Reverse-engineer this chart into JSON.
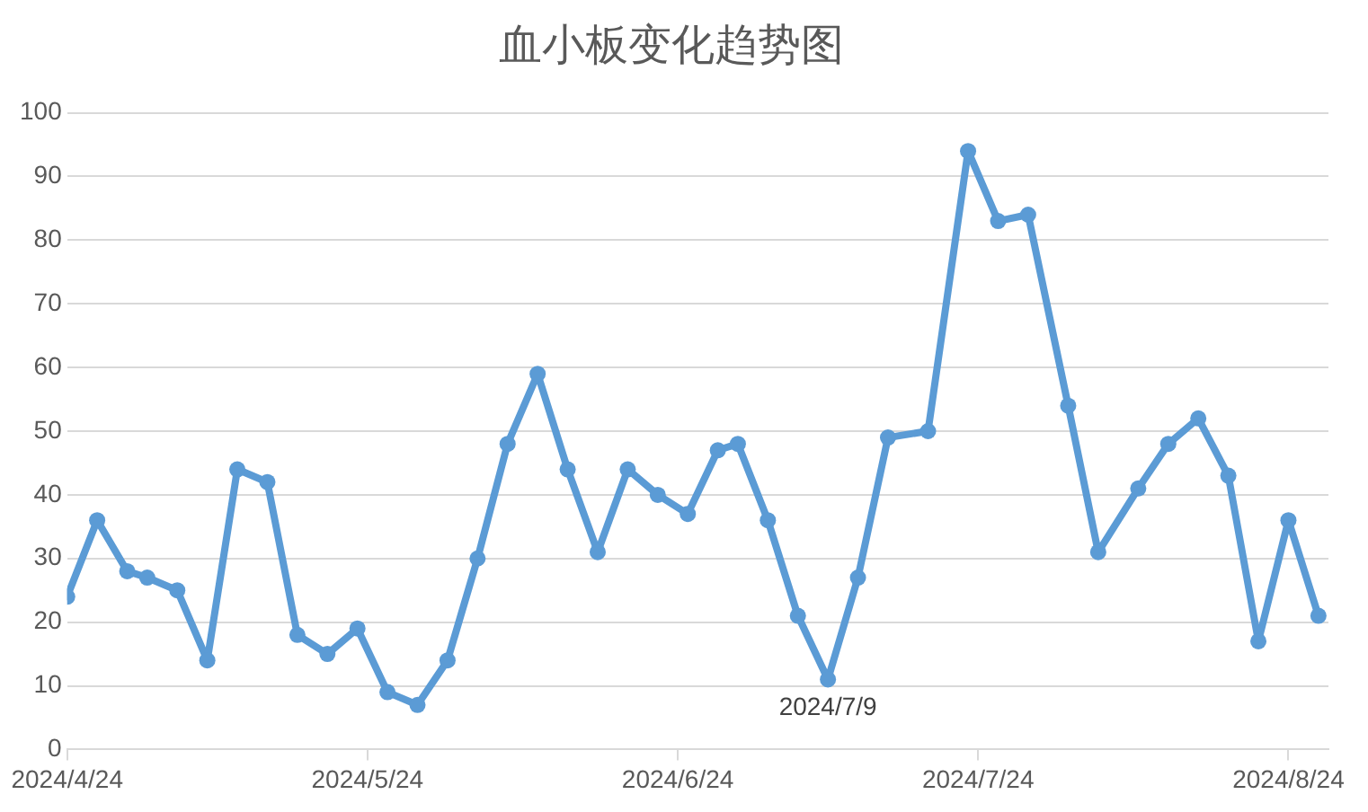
{
  "chart_data": {
    "type": "line",
    "title": "血小板变化趋势图",
    "x": [
      "2024-04-24",
      "2024-04-27",
      "2024-04-30",
      "2024-05-02",
      "2024-05-05",
      "2024-05-08",
      "2024-05-11",
      "2024-05-14",
      "2024-05-17",
      "2024-05-20",
      "2024-05-23",
      "2024-05-26",
      "2024-05-29",
      "2024-06-01",
      "2024-06-04",
      "2024-06-07",
      "2024-06-10",
      "2024-06-13",
      "2024-06-16",
      "2024-06-19",
      "2024-06-22",
      "2024-06-25",
      "2024-06-28",
      "2024-06-30",
      "2024-07-03",
      "2024-07-06",
      "2024-07-09",
      "2024-07-12",
      "2024-07-15",
      "2024-07-19",
      "2024-07-23",
      "2024-07-26",
      "2024-07-29",
      "2024-08-02",
      "2024-08-05",
      "2024-08-09",
      "2024-08-12",
      "2024-08-15",
      "2024-08-18",
      "2024-08-21",
      "2024-08-24",
      "2024-08-27"
    ],
    "series": [
      {
        "color": "#5b9bd5",
        "values": [
          24,
          36,
          28,
          27,
          25,
          14,
          44,
          42,
          18,
          15,
          19,
          9,
          7,
          14,
          30,
          48,
          59,
          44,
          31,
          44,
          40,
          37,
          47,
          48,
          36,
          21,
          11,
          27,
          49,
          50,
          94,
          83,
          84,
          54,
          31,
          41,
          48,
          52,
          43,
          17,
          36,
          21
        ]
      }
    ],
    "xlim": [
      "2024-04-24",
      "2024-08-28"
    ],
    "xticks": [
      {
        "value": "2024-04-24",
        "label": "2024/4/24"
      },
      {
        "value": "2024-05-24",
        "label": "2024/5/24"
      },
      {
        "value": "2024-06-24",
        "label": "2024/6/24"
      },
      {
        "value": "2024-07-24",
        "label": "2024/7/24"
      },
      {
        "value": "2024-08-24",
        "label": "2024/8/24"
      }
    ],
    "ylim": [
      0,
      100
    ],
    "yticks": [
      0,
      10,
      20,
      30,
      40,
      50,
      60,
      70,
      80,
      90,
      100
    ],
    "annotations": [
      {
        "text": "2024/7/9",
        "x": "2024-07-09",
        "y": 11
      }
    ],
    "grid": "y",
    "legend": false,
    "marker": "circle",
    "line_style": "solid"
  }
}
